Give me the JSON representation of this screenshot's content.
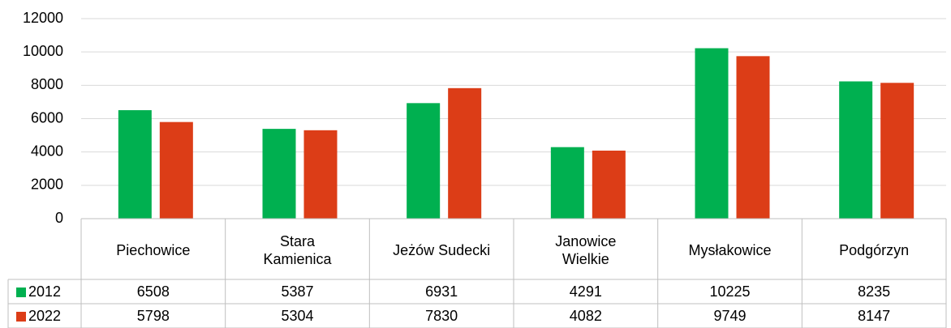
{
  "chart_data": {
    "type": "bar",
    "categories": [
      "Piechowice",
      "Stara Kamienica",
      "Jeżów Sudecki",
      "Janowice Wielkie",
      "Mysłakowice",
      "Podgórzyn"
    ],
    "series": [
      {
        "name": "2012",
        "color": "#00b050",
        "values": [
          6508,
          5387,
          6931,
          4291,
          10225,
          8235
        ]
      },
      {
        "name": "2022",
        "color": "#dc3d17",
        "values": [
          5798,
          5304,
          7830,
          4082,
          9749,
          8147
        ]
      }
    ],
    "ylim": [
      0,
      12000
    ],
    "yticks": [
      0,
      2000,
      4000,
      6000,
      8000,
      10000,
      12000
    ],
    "grid": true,
    "data_table": true
  }
}
